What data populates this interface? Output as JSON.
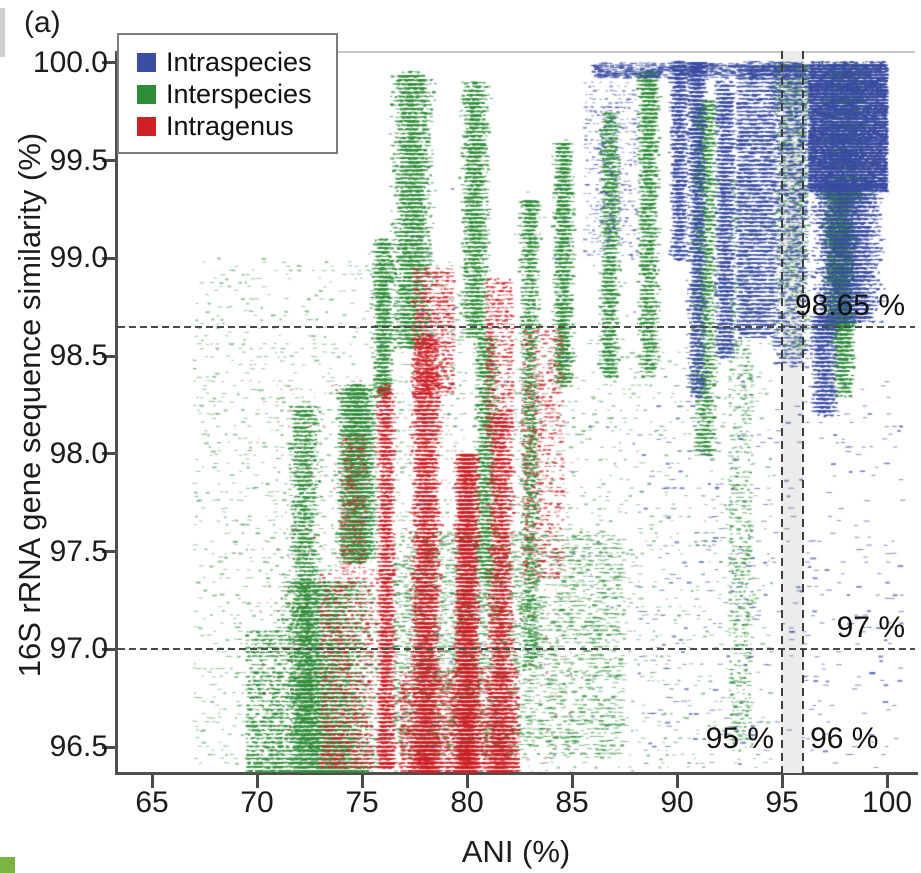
{
  "figure": {
    "panel_label": "(a)",
    "background": "#ffffff",
    "corner_marker_color": "#7cb342",
    "edge_strip_color": "#cfcfcf"
  },
  "legend": {
    "items": [
      {
        "label": "Intraspecies",
        "color": "#3b4da2"
      },
      {
        "label": "Interspecies",
        "color": "#2f8d3a"
      },
      {
        "label": "Intragenus",
        "color": "#cd2027"
      }
    ]
  },
  "chart_data": {
    "type": "scatter",
    "title": "",
    "xlabel": "ANI (%)",
    "ylabel": "16S rRNA gene sequence similarity (%)",
    "xlim": [
      63.38,
      101.33
    ],
    "ylim": [
      96.367,
      100.061
    ],
    "grid": false,
    "legend_position": "top-left",
    "xticks": {
      "values": [
        65,
        70,
        75,
        80,
        85,
        90,
        95,
        100
      ],
      "labels": [
        "65",
        "70",
        "75",
        "80",
        "85",
        "90",
        "95",
        "100"
      ]
    },
    "yticks": {
      "values": [
        100.0,
        99.5,
        99.0,
        98.5,
        98.0,
        97.5,
        97.0,
        96.5
      ],
      "labels": [
        "100.0",
        "99.5",
        "99.0",
        "98.5",
        "98.0",
        "97.5",
        "97.0",
        "96.5"
      ]
    },
    "series": [
      {
        "name": "Intraspecies",
        "color": "#3b4da2",
        "description": "dense wedge ANI 96-100 / 16S 98.6-100 plus vertical streaks at ANI 89-95"
      },
      {
        "name": "Interspecies",
        "color": "#2f8d3a",
        "description": "broad field ANI 69-95 / 16S 96.4-100 with vertical streaks and horizontal rows"
      },
      {
        "name": "Intragenus",
        "color": "#cd2027",
        "description": "dense vertical bands ANI 76-82 / 16S 96.4-98.9"
      }
    ],
    "reference_lines": {
      "horizontal": [
        {
          "value": 98.65,
          "label": "98.65 %"
        },
        {
          "value": 97,
          "label": "97 %"
        }
      ],
      "vertical": [
        {
          "value": 95,
          "label": "95 %"
        },
        {
          "value": 96,
          "label": "96 %"
        }
      ]
    },
    "shaded_band": {
      "x": [
        95,
        96
      ],
      "color": "#ececea"
    },
    "clusters": [
      {
        "s": "Interspecies",
        "x": [
          67,
          80
        ],
        "y": [
          96.38,
          99.0
        ],
        "n": 1700,
        "xd": "uni",
        "yd": "uni",
        "w": [
          2,
          5
        ],
        "a": 0.5
      },
      {
        "s": "Interspecies",
        "x": [
          80,
          94.5
        ],
        "y": [
          96.38,
          98.6
        ],
        "n": 1100,
        "xd": "uni",
        "yd": "uni",
        "w": [
          2,
          5
        ],
        "a": 0.5
      },
      {
        "s": "Interspecies",
        "x": [
          70.3,
          76.2
        ],
        "y": [
          96.38,
          97.35
        ],
        "n": 6000,
        "xd": "tri",
        "yd": "bot",
        "p": 1.6
      },
      {
        "s": "Interspecies",
        "x": [
          69.5,
          71.2
        ],
        "y": [
          96.38,
          97.1
        ],
        "n": 800,
        "yd": "bot",
        "p": 1.4
      },
      {
        "s": "Interspecies",
        "x": [
          71.3,
          73.2
        ],
        "y": [
          96.5,
          98.25
        ],
        "n": 2200,
        "xd": "tri"
      },
      {
        "s": "Interspecies",
        "x": [
          73.6,
          75.9
        ],
        "y": [
          97.45,
          98.35
        ],
        "n": 4000,
        "xd": "tri"
      },
      {
        "s": "Interspecies",
        "x": [
          75.4,
          76.6
        ],
        "y": [
          98.3,
          99.1
        ],
        "n": 1200,
        "xd": "tri"
      },
      {
        "s": "Interspecies",
        "x": [
          76.2,
          78.6
        ],
        "y": [
          98.55,
          99.95
        ],
        "n": 3600,
        "xd": "tri"
      },
      {
        "s": "Interspecies",
        "x": [
          79.6,
          81.2
        ],
        "y": [
          98.6,
          99.9
        ],
        "n": 2200,
        "xd": "tri"
      },
      {
        "s": "Interspecies",
        "x": [
          80.2,
          81.6
        ],
        "y": [
          97.35,
          98.6
        ],
        "n": 1400,
        "xd": "tri"
      },
      {
        "s": "Interspecies",
        "x": [
          82.4,
          83.6
        ],
        "y": [
          96.9,
          99.3
        ],
        "n": 1800,
        "xd": "tri",
        "yd": "top",
        "p": 1.4
      },
      {
        "s": "Interspecies",
        "x": [
          84.0,
          85.2
        ],
        "y": [
          98.35,
          99.6
        ],
        "n": 1800,
        "xd": "tri"
      },
      {
        "s": "Interspecies",
        "x": [
          86.2,
          87.4
        ],
        "y": [
          98.4,
          99.75
        ],
        "n": 1500,
        "xd": "tri"
      },
      {
        "s": "Interspecies",
        "x": [
          88.0,
          89.3
        ],
        "y": [
          98.4,
          99.95
        ],
        "n": 2000,
        "xd": "tri",
        "yd": "top",
        "p": 1.5
      },
      {
        "s": "Interspecies",
        "x": [
          90.6,
          92.1
        ],
        "y": [
          98.0,
          99.8
        ],
        "n": 2000,
        "xd": "tri",
        "yd": "top",
        "p": 1.3
      },
      {
        "s": "Interspecies",
        "x": [
          92.5,
          93.6
        ],
        "y": [
          96.5,
          99.4
        ],
        "n": 850,
        "a": 0.65
      },
      {
        "s": "Interspecies",
        "x": [
          96.4,
          99.6
        ],
        "y": [
          99.3,
          100
        ],
        "n": 2200,
        "xd": "tri",
        "a": 0.8
      },
      {
        "s": "Interspecies",
        "x": [
          96.8,
          98.7
        ],
        "y": [
          98.65,
          99.35
        ],
        "n": 1600,
        "xd": "tri"
      },
      {
        "s": "Interspecies",
        "x": [
          97.2,
          98.6
        ],
        "y": [
          98.3,
          98.68
        ],
        "n": 800,
        "xd": "tri",
        "yd": "top",
        "p": 1.6
      },
      {
        "s": "Interspecies",
        "x": [
          76.5,
          87.5
        ],
        "y": [
          96.45,
          97.6
        ],
        "n": 2400,
        "w": [
          3,
          6
        ],
        "a": 0.6
      },
      {
        "s": "Interspecies",
        "x": [
          94.6,
          96.3
        ],
        "y": [
          98.5,
          100
        ],
        "n": 800,
        "yd": "top",
        "p": 1.4,
        "a": 0.65
      },
      {
        "s": "Intragenus",
        "x": [
          75.6,
          76.7
        ],
        "y": [
          96.4,
          98.35
        ],
        "n": 2800,
        "xd": "tri",
        "yd": "bot",
        "p": 1.3
      },
      {
        "s": "Intragenus",
        "x": [
          77.2,
          78.9
        ],
        "y": [
          96.38,
          98.6
        ],
        "n": 7500,
        "xd": "tri",
        "yd": "bot",
        "p": 1.7
      },
      {
        "s": "Intragenus",
        "x": [
          79.3,
          80.7
        ],
        "y": [
          96.38,
          98.0
        ],
        "n": 9000,
        "xd": "tri",
        "yd": "bot",
        "p": 1.5
      },
      {
        "s": "Intragenus",
        "x": [
          80.8,
          82.4
        ],
        "y": [
          96.38,
          98.2
        ],
        "n": 4000,
        "xd": "tri",
        "yd": "bot",
        "p": 1.6
      },
      {
        "s": "Intragenus",
        "x": [
          77.4,
          79.4
        ],
        "y": [
          98.3,
          98.95
        ],
        "n": 800,
        "a": 0.7
      },
      {
        "s": "Intragenus",
        "x": [
          80.9,
          82.2
        ],
        "y": [
          98.1,
          98.9
        ],
        "n": 550,
        "a": 0.7
      },
      {
        "s": "Intragenus",
        "x": [
          82.6,
          84.6
        ],
        "y": [
          97.35,
          98.65
        ],
        "n": 750,
        "a": 0.65
      },
      {
        "s": "Intragenus",
        "x": [
          73.0,
          75.5
        ],
        "y": [
          96.4,
          97.4
        ],
        "n": 1100,
        "yd": "bot",
        "p": 1.5,
        "a": 0.65
      },
      {
        "s": "Intragenus",
        "x": [
          74.0,
          75.2
        ],
        "y": [
          97.4,
          98.1
        ],
        "n": 350,
        "a": 0.55
      },
      {
        "s": "Intragenus",
        "x": [
          76.8,
          82.5
        ],
        "y": [
          96.38,
          96.9
        ],
        "n": 2400,
        "yd": "bot",
        "p": 1.2
      },
      {
        "s": "Intragenus",
        "x": [
          70,
          85
        ],
        "y": [
          96.38,
          98.4
        ],
        "n": 600,
        "a": 0.45,
        "w": [
          1,
          3
        ]
      },
      {
        "s": "Intraspecies",
        "x": [
          96.3,
          100
        ],
        "y": [
          99.35,
          100
        ],
        "n": 13000,
        "step": 0.016,
        "a": 0.9
      },
      {
        "s": "Intraspecies",
        "x": [
          96.2,
          100
        ],
        "y": [
          98.68,
          99.38
        ],
        "n": 5500,
        "xd": "tri",
        "yd": "top",
        "p": 1.2,
        "a": 0.85
      },
      {
        "s": "Intraspecies",
        "x": [
          96.2,
          97.8
        ],
        "y": [
          98.2,
          98.7
        ],
        "n": 1300,
        "xd": "tri",
        "yd": "top",
        "p": 1.5
      },
      {
        "s": "Intraspecies",
        "x": [
          89.6,
          90.6
        ],
        "y": [
          99.0,
          100
        ],
        "n": 1600,
        "xd": "tri",
        "yd": "top",
        "p": 1.3
      },
      {
        "s": "Intraspecies",
        "x": [
          90.4,
          91.5
        ],
        "y": [
          98.3,
          100
        ],
        "n": 2800,
        "xd": "tri",
        "yd": "top",
        "p": 1.6
      },
      {
        "s": "Intraspecies",
        "x": [
          91.7,
          92.9
        ],
        "y": [
          98.5,
          99.9
        ],
        "n": 2300,
        "xd": "tri"
      },
      {
        "s": "Intraspecies",
        "x": [
          92.9,
          94.6
        ],
        "y": [
          98.6,
          100
        ],
        "n": 2400,
        "w": [
          3,
          6
        ],
        "a": 0.75
      },
      {
        "s": "Intraspecies",
        "x": [
          94.6,
          96.2
        ],
        "y": [
          98.45,
          100
        ],
        "n": 1500,
        "yd": "top",
        "p": 1.4,
        "w": [
          3,
          5
        ],
        "a": 0.7
      },
      {
        "s": "Intraspecies",
        "x": [
          88,
          100.8
        ],
        "y": [
          96.4,
          98.4
        ],
        "n": 420,
        "w": [
          3,
          6
        ],
        "a": 0.65
      },
      {
        "s": "Intraspecies",
        "x": [
          75,
          88
        ],
        "y": [
          96.4,
          99.4
        ],
        "n": 200,
        "w": [
          2,
          4
        ],
        "a": 0.55
      },
      {
        "s": "Intraspecies",
        "x": [
          86,
          96.2
        ],
        "y": [
          99.93,
          100.0
        ],
        "n": 650,
        "step": 0.01,
        "w": [
          3,
          6
        ],
        "a": 0.75
      },
      {
        "s": "Intraspecies",
        "x": [
          85.6,
          88.2
        ],
        "y": [
          99.0,
          99.9
        ],
        "n": 450,
        "a": 0.55
      }
    ]
  }
}
